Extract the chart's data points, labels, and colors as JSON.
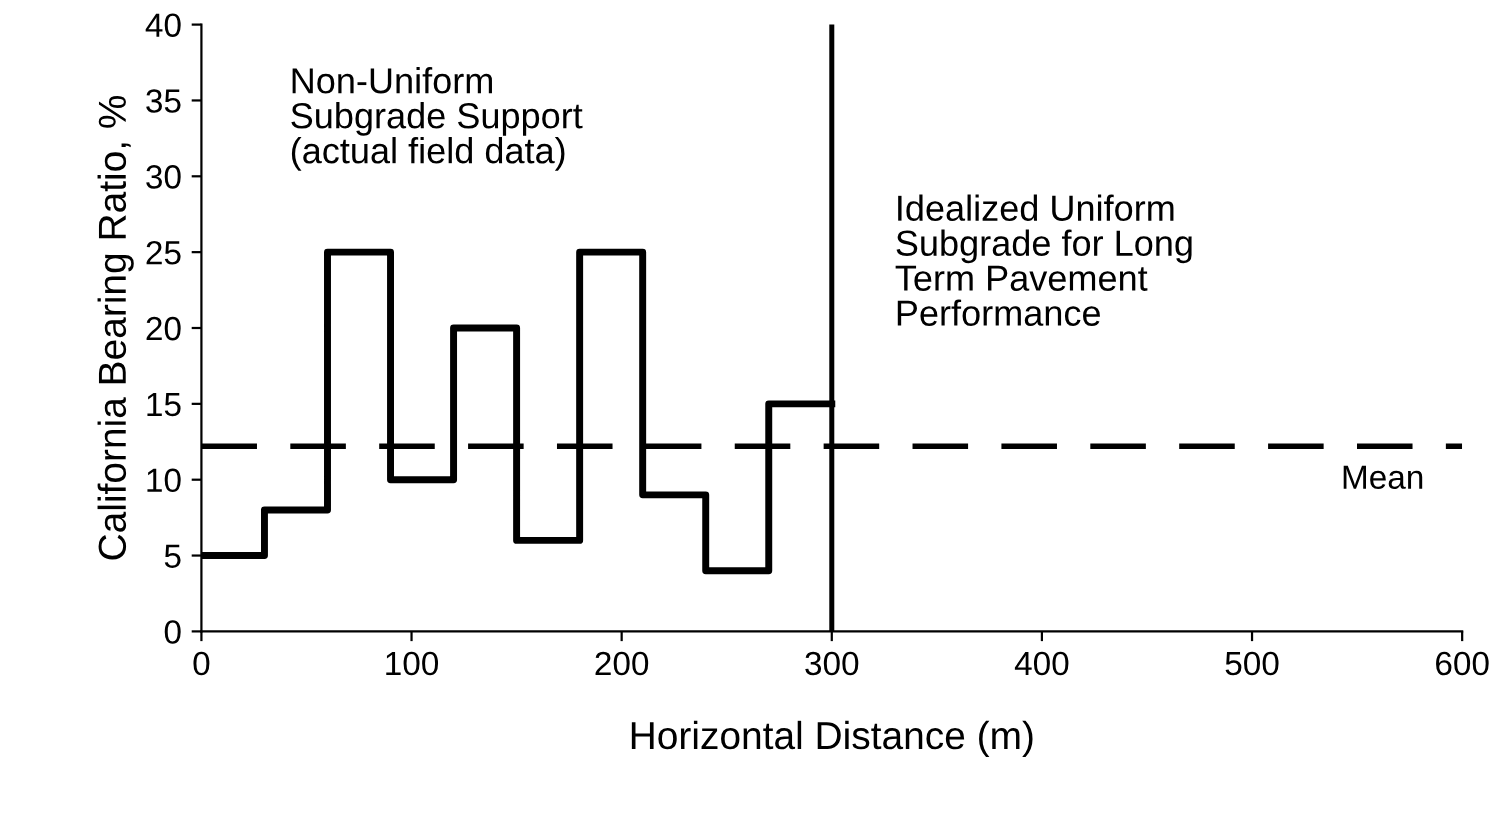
{
  "chart_data": {
    "type": "step",
    "xlabel": "Horizontal Distance (m)",
    "ylabel": "California Bearing Ratio, %",
    "x": [
      0,
      30,
      60,
      90,
      120,
      150,
      180,
      210,
      240,
      270,
      300
    ],
    "values": [
      5,
      8,
      25,
      10,
      20,
      6,
      25,
      9,
      4,
      15,
      15
    ],
    "color": "#000000",
    "xlim": [
      0,
      600
    ],
    "xticks": [
      0,
      100,
      200,
      300,
      400,
      500,
      600
    ],
    "ylim": [
      0,
      40
    ],
    "yticks": [
      0,
      5,
      10,
      15,
      20,
      25,
      30,
      35,
      40
    ],
    "grid": false,
    "legend": false,
    "ref_lines": [
      {
        "axis": "y",
        "value": 12.2,
        "label": "Mean",
        "line_style": "dashed",
        "color": "#000000"
      },
      {
        "axis": "x",
        "value": 300,
        "label": null,
        "line_style": "solid",
        "color": "#000000"
      }
    ],
    "annotations": [
      "Non-Uniform\nSubgrade Support\n(actual field data)",
      "Idealized Uniform\nSubgrade for Long\nTerm Pavement\nPerformance"
    ]
  }
}
